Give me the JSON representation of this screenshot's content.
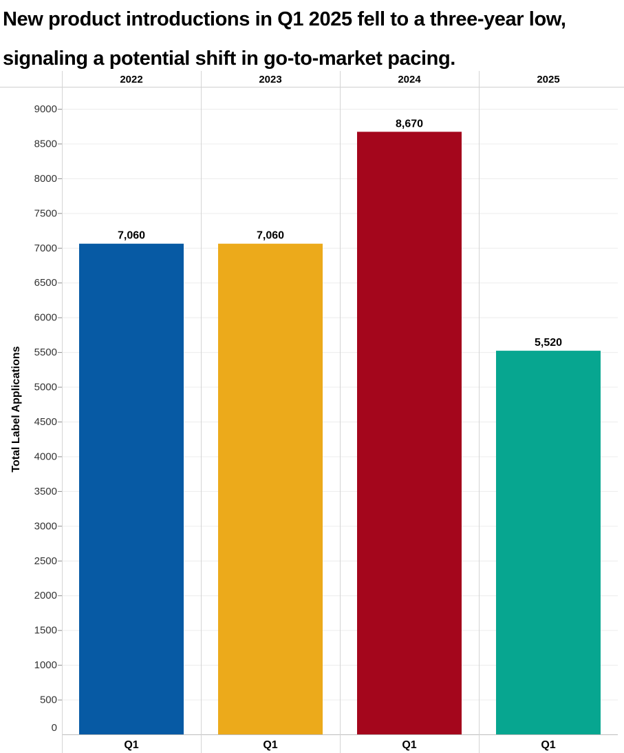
{
  "chart_data": {
    "type": "bar",
    "title": "New product introductions in Q1 2025 fell to a three-year low, signaling a potential shift in go-to-market pacing.",
    "title_lines": [
      "New product introductions in Q1 2025 fell to a three-year low,",
      "signaling a potential shift in go-to-market pacing."
    ],
    "ylabel": "Total Label Applications",
    "xlabel": "",
    "ylim": [
      0,
      9000
    ],
    "yticks": [
      "0",
      "500",
      "1000",
      "1500",
      "2000",
      "2500",
      "3000",
      "3500",
      "4000",
      "4500",
      "5000",
      "5500",
      "6000",
      "6500",
      "7000",
      "7500",
      "8000",
      "8500",
      "9000"
    ],
    "grid": true,
    "legend": "none",
    "panels": [
      {
        "year": "2022",
        "category": "Q1",
        "value": 7060,
        "label": "7,060",
        "color": "#075aa4"
      },
      {
        "year": "2023",
        "category": "Q1",
        "value": 7060,
        "label": "7,060",
        "color": "#ecaa1b"
      },
      {
        "year": "2024",
        "category": "Q1",
        "value": 8670,
        "label": "8,670",
        "color": "#a4061c"
      },
      {
        "year": "2025",
        "category": "Q1",
        "value": 5520,
        "label": "5,520",
        "color": "#07a690"
      }
    ]
  }
}
